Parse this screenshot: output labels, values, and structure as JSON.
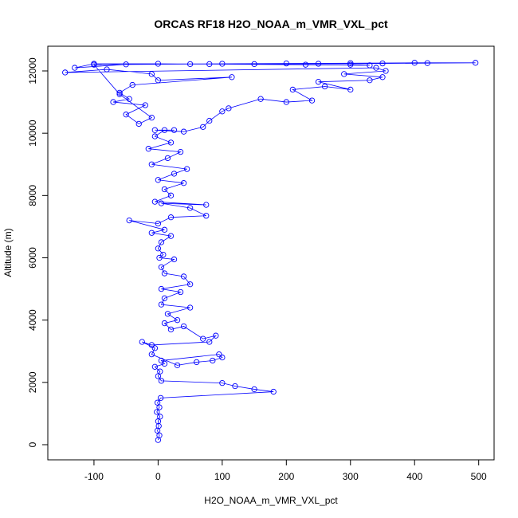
{
  "chart_data": {
    "type": "line",
    "markers": true,
    "title": "ORCAS RF18 H2O_NOAA_m_VMR_VXL_pct",
    "x_label": "H2O_NOAA_m_VMR_VXL_pct",
    "y_label": "Altitude (m)",
    "color": "#0000ff",
    "xlim": [
      -172,
      524
    ],
    "ylim": [
      -486,
      12793
    ],
    "xticks": [
      -100,
      0,
      100,
      200,
      300,
      400,
      500
    ],
    "yticks": [
      0,
      2000,
      4000,
      6000,
      8000,
      10000,
      12000
    ],
    "x": [
      0,
      2,
      -1,
      1,
      0,
      3,
      -2,
      2,
      -1,
      4,
      180,
      150,
      120,
      100,
      5,
      0,
      3,
      -5,
      10,
      5,
      95,
      100,
      85,
      60,
      30,
      -10,
      -5,
      -25,
      -10,
      80,
      90,
      70,
      40,
      20,
      10,
      30,
      15,
      50,
      5,
      10,
      35,
      5,
      50,
      40,
      10,
      5,
      25,
      2,
      8,
      0,
      5,
      20,
      -10,
      10,
      -45,
      0,
      20,
      75,
      50,
      5,
      75,
      -5,
      20,
      10,
      40,
      0,
      25,
      45,
      -10,
      15,
      35,
      -15,
      20,
      -5,
      10,
      25,
      -5,
      40,
      70,
      80,
      100,
      110,
      160,
      200,
      240,
      210,
      260,
      300,
      250,
      330,
      350,
      290,
      355,
      340,
      -145,
      -80,
      -10,
      0,
      115,
      -40,
      -60,
      -45,
      -70,
      -20,
      -50,
      -30,
      -10,
      -60,
      -100,
      100,
      200,
      300,
      400,
      495,
      420,
      350,
      250,
      150,
      50,
      -50,
      -130,
      -100,
      0,
      80,
      230,
      330,
      300
    ],
    "y": [
      150,
      300,
      450,
      600,
      750,
      900,
      1050,
      1200,
      1350,
      1500,
      1700,
      1780,
      1880,
      1980,
      2050,
      2200,
      2350,
      2500,
      2600,
      2700,
      2900,
      2800,
      2700,
      2650,
      2550,
      2900,
      3100,
      3300,
      3200,
      3300,
      3500,
      3400,
      3800,
      3700,
      3900,
      4000,
      4200,
      4400,
      4500,
      4700,
      4900,
      5000,
      5150,
      5400,
      5500,
      5700,
      5950,
      6000,
      6100,
      6300,
      6500,
      6700,
      6800,
      6900,
      7200,
      7100,
      7300,
      7350,
      7600,
      7750,
      7700,
      7800,
      8000,
      8200,
      8400,
      8500,
      8700,
      8850,
      9000,
      9200,
      9400,
      9500,
      9700,
      9900,
      10100,
      10100,
      10100,
      10050,
      10200,
      10400,
      10700,
      10800,
      11100,
      11000,
      11050,
      11400,
      11500,
      11400,
      11650,
      11700,
      11800,
      11900,
      12000,
      12100,
      11950,
      12050,
      11900,
      11700,
      11800,
      11550,
      11300,
      11100,
      11000,
      10900,
      10600,
      10300,
      10500,
      11250,
      12200,
      12230,
      12240,
      12250,
      12260,
      12260,
      12250,
      12240,
      12230,
      12220,
      12220,
      12210,
      12100,
      12230,
      12230,
      12220,
      12200,
      12180,
      12200
    ]
  }
}
